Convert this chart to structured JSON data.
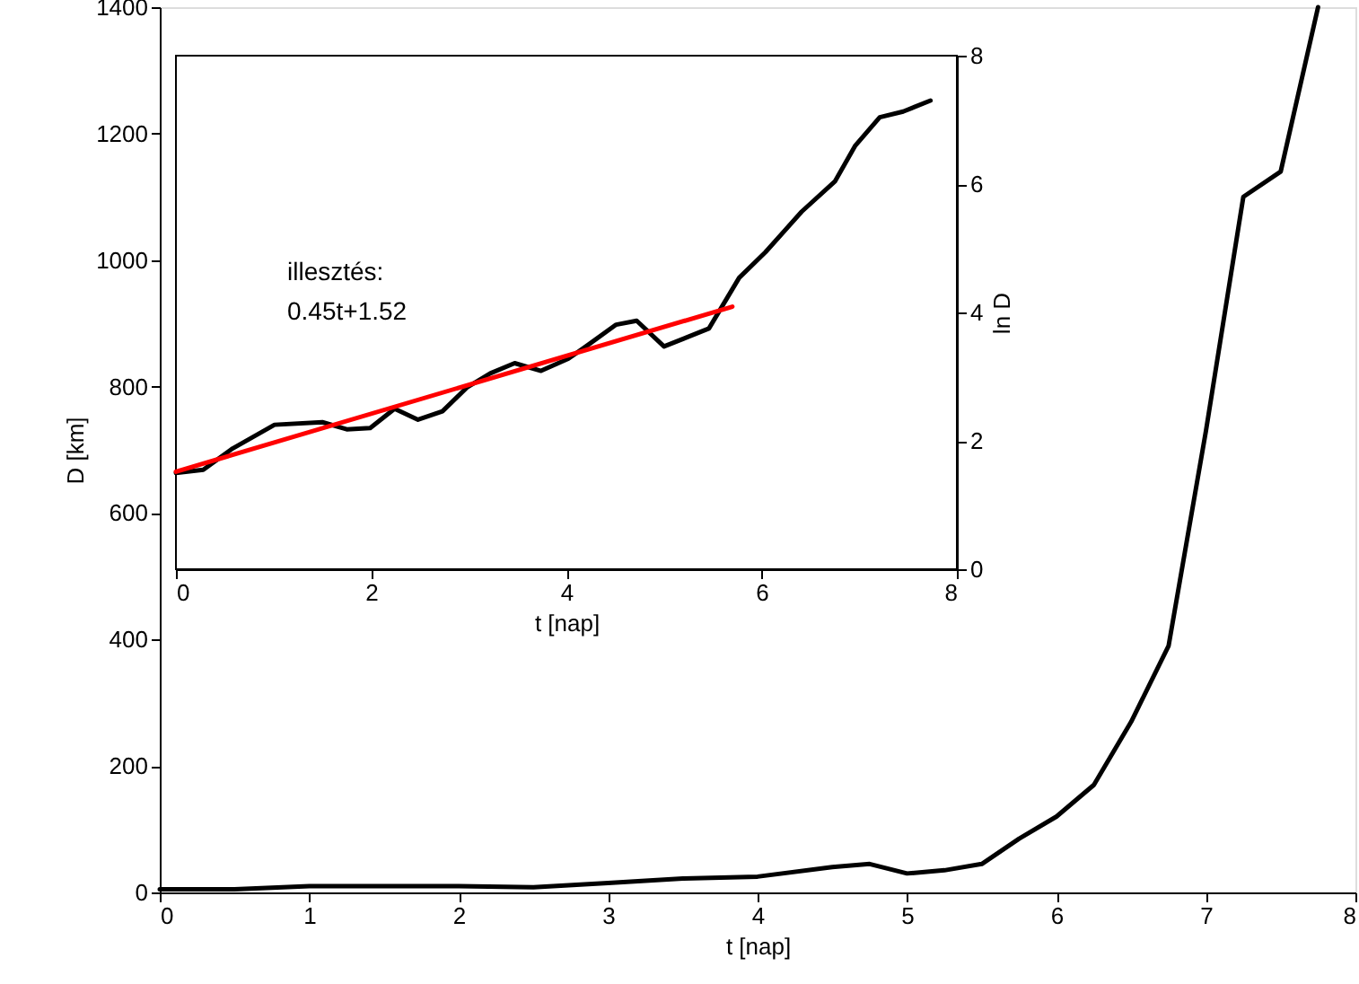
{
  "chart_data": [
    {
      "type": "line",
      "xlabel": "t [nap]",
      "ylabel": "D [km]",
      "xlim": [
        0,
        8
      ],
      "xticks": [
        0,
        1,
        2,
        3,
        4,
        5,
        6,
        7,
        8
      ],
      "ylim": [
        0,
        1400
      ],
      "yticks": [
        0,
        200,
        400,
        600,
        800,
        1000,
        1200,
        1400
      ],
      "grid": false,
      "series": [
        {
          "color": "#000000",
          "x": [
            0,
            0.5,
            1,
            1.5,
            2,
            2.5,
            3,
            3.5,
            4,
            4.5,
            4.75,
            5,
            5.25,
            5.5,
            5.75,
            6,
            6.25,
            6.5,
            6.75,
            7,
            7.25,
            7.5,
            7.75
          ],
          "values": [
            5,
            5,
            10,
            10,
            10,
            8,
            15,
            22,
            25,
            40,
            45,
            30,
            35,
            45,
            85,
            120,
            170,
            270,
            390,
            730,
            1100,
            1140,
            1400
          ]
        }
      ]
    },
    {
      "type": "line",
      "xlabel": "t [nap]",
      "ylabel": "ln D",
      "xlim": [
        0,
        8
      ],
      "xticks": [
        0,
        2,
        4,
        6,
        8
      ],
      "ylim": [
        0,
        8
      ],
      "yticks": [
        0,
        2,
        4,
        6,
        8
      ],
      "grid": false,
      "annotations": [
        "illesztés:",
        "0.45t+1.52"
      ],
      "series": [
        {
          "color": "#000000",
          "x": [
            0,
            0.28,
            0.58,
            1.01,
            1.5,
            1.75,
            1.99,
            2.24,
            2.48,
            2.73,
            2.98,
            3.22,
            3.47,
            3.74,
            4.02,
            4.2,
            4.51,
            4.72,
            5.0,
            5.46,
            5.77,
            6.04,
            6.41,
            6.75,
            6.96,
            7.21,
            7.45,
            7.73
          ],
          "values": [
            1.5,
            1.55,
            1.88,
            2.25,
            2.29,
            2.18,
            2.2,
            2.5,
            2.33,
            2.46,
            2.83,
            3.05,
            3.21,
            3.09,
            3.28,
            3.47,
            3.81,
            3.87,
            3.47,
            3.75,
            4.54,
            4.94,
            5.57,
            6.04,
            6.6,
            7.04,
            7.13,
            7.3
          ]
        },
        {
          "color": "#ff0000",
          "x": [
            0,
            5.7
          ],
          "values": [
            1.52,
            4.09
          ]
        }
      ]
    }
  ]
}
